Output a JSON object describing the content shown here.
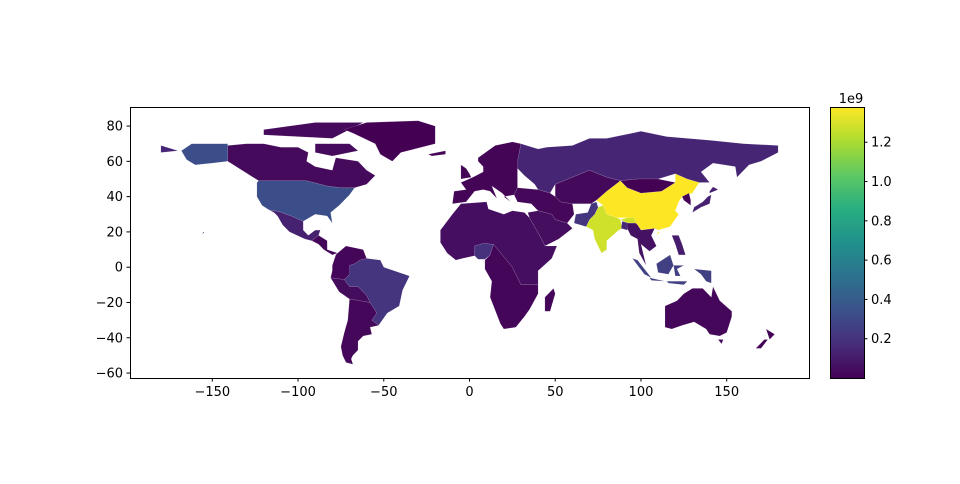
{
  "chart_data": {
    "type": "choropleth-map",
    "title": "",
    "xlabel": "",
    "ylabel": "",
    "xlim": [
      -198,
      198
    ],
    "ylim": [
      -62.8,
      90.8
    ],
    "xticks": [
      -150,
      -100,
      -50,
      0,
      50,
      100,
      150
    ],
    "xtick_labels": [
      "−150",
      "−100",
      "−50",
      "0",
      "50",
      "100",
      "150"
    ],
    "yticks": [
      -60,
      -40,
      -20,
      0,
      20,
      40,
      60,
      80
    ],
    "ytick_labels": [
      "−60",
      "−40",
      "−20",
      "0",
      "20",
      "40",
      "60",
      "80"
    ],
    "grid": false,
    "colormap": "viridis",
    "colorbar": {
      "vmin": 140000,
      "vmax": 1379302771,
      "offset_label": "1e9",
      "ticks": [
        0.2,
        0.4,
        0.6,
        0.8,
        1.0,
        1.2
      ],
      "tick_labels": [
        "0.2",
        "0.4",
        "0.6",
        "0.8",
        "1.0",
        "1.2"
      ],
      "tick_scale": 1000000000
    },
    "region_values": [
      1379302771,
      1281935911,
      326625791,
      260580739,
      207353391,
      204924861,
      190632261,
      157826578,
      142257519,
      126451398,
      124574795,
      35623680,
      57713,
      18000000,
      20000000,
      40000000,
      25000000,
      15000000,
      22000000,
      50000000,
      30000000,
      3000000,
      23232413,
      65000000,
      104256076,
      51181299,
      4510327,
      21000000,
      25000000,
      339747,
      9000000
    ]
  },
  "colors": {
    "viridis_stops": [
      "#440154",
      "#472d7b",
      "#3b528b",
      "#2c728e",
      "#21918c",
      "#28ae80",
      "#5ec962",
      "#addc30",
      "#fde725"
    ]
  }
}
